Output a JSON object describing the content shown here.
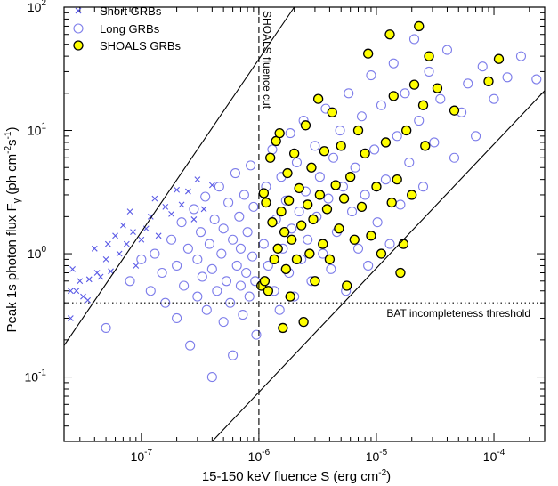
{
  "chart_data": {
    "type": "scatter",
    "x_scale": "log",
    "y_scale": "log",
    "xlim": [
      2.2e-08,
      0.00027
    ],
    "ylim": [
      0.03,
      100
    ],
    "xlabel": "15-150 keV fluence  S (erg cm",
    "xlabel_sup": "-2",
    "xlabel_end": ")",
    "ylabel_pre": "Peak 1s photon flux  F",
    "ylabel_sub": "γ",
    "ylabel_mid": " (ph cm",
    "ylabel_sup1": "-2",
    "ylabel_s": "s",
    "ylabel_sup2": "-1",
    "ylabel_end": ")",
    "x_ticks": [
      {
        "value": 1e-07,
        "base": "10",
        "exp": "-7"
      },
      {
        "value": 1e-06,
        "base": "10",
        "exp": "-6"
      },
      {
        "value": 1e-05,
        "base": "10",
        "exp": "-5"
      },
      {
        "value": 0.0001,
        "base": "10",
        "exp": "-4"
      }
    ],
    "y_ticks": [
      {
        "value": 0.1,
        "base": "10",
        "exp": "-1"
      },
      {
        "value": 1,
        "base": "10",
        "exp": "0"
      },
      {
        "value": 10,
        "base": "10",
        "exp": "1"
      },
      {
        "value": 100,
        "base": "10",
        "exp": "2"
      }
    ],
    "legend": {
      "position": "top-left",
      "entries": [
        {
          "label": "Short GRBs",
          "marker": "x"
        },
        {
          "label": "Long GRBs",
          "marker": "open-circle"
        },
        {
          "label": "SHOALS GRBs",
          "marker": "filled-circle"
        }
      ]
    },
    "annotations": {
      "fluence_cut_label": "SHOALS fluence cut",
      "fluence_cut_x": 1e-06,
      "threshold_label": "BAT incompleteness threshold",
      "threshold_y": 0.4
    },
    "reference_lines": [
      {
        "style": "solid",
        "points": [
          [
            2.2e-08,
            0.18
          ],
          [
            2e-06,
            100
          ]
        ]
      },
      {
        "style": "solid",
        "points": [
          [
            4e-07,
            0.03
          ],
          [
            0.00027,
            21
          ]
        ]
      }
    ],
    "series": [
      {
        "name": "Short GRBs",
        "marker": "x",
        "color": "#5a5ae6",
        "points": [
          [
            2.5e-08,
            0.3
          ],
          [
            2.5e-08,
            0.5
          ],
          [
            2.6e-08,
            0.75
          ],
          [
            2.8e-08,
            0.5
          ],
          [
            3e-08,
            0.6
          ],
          [
            3.2e-08,
            0.45
          ],
          [
            3.5e-08,
            0.42
          ],
          [
            3.6e-08,
            0.62
          ],
          [
            4e-08,
            1.1
          ],
          [
            4.2e-08,
            0.7
          ],
          [
            4.5e-08,
            0.65
          ],
          [
            5e-08,
            0.9
          ],
          [
            5.2e-08,
            1.2
          ],
          [
            5.5e-08,
            0.72
          ],
          [
            6e-08,
            1.4
          ],
          [
            6.5e-08,
            1.0
          ],
          [
            7e-08,
            1.7
          ],
          [
            7.5e-08,
            1.2
          ],
          [
            8e-08,
            2.2
          ],
          [
            8.5e-08,
            1.5
          ],
          [
            9e-08,
            0.8
          ],
          [
            1e-07,
            1.3
          ],
          [
            1.1e-07,
            1.6
          ],
          [
            1.2e-07,
            2.0
          ],
          [
            1.3e-07,
            2.8
          ],
          [
            1.4e-07,
            1.4
          ],
          [
            1.6e-07,
            2.4
          ],
          [
            1.8e-07,
            2.1
          ],
          [
            2e-07,
            3.3
          ],
          [
            2.2e-07,
            2.5
          ],
          [
            2.5e-07,
            3.2
          ],
          [
            2.8e-07,
            1.9
          ],
          [
            3e-07,
            4.0
          ],
          [
            3.4e-07,
            2.3
          ],
          [
            4e-07,
            3.6
          ]
        ]
      },
      {
        "name": "Long GRBs",
        "marker": "open-circle",
        "color": "#7d7dea",
        "points": [
          [
            5e-08,
            0.25
          ],
          [
            8e-08,
            0.6
          ],
          [
            1e-07,
            0.9
          ],
          [
            1.2e-07,
            0.5
          ],
          [
            1.3e-07,
            1.0
          ],
          [
            1.5e-07,
            0.7
          ],
          [
            1.6e-07,
            0.4
          ],
          [
            1.8e-07,
            1.3
          ],
          [
            2e-07,
            0.8
          ],
          [
            2e-07,
            0.3
          ],
          [
            2.2e-07,
            1.8
          ],
          [
            2.3e-07,
            0.55
          ],
          [
            2.5e-07,
            1.1
          ],
          [
            2.6e-07,
            0.18
          ],
          [
            2.8e-07,
            2.3
          ],
          [
            3e-07,
            0.9
          ],
          [
            3e-07,
            0.45
          ],
          [
            3.2e-07,
            1.5
          ],
          [
            3.3e-07,
            0.65
          ],
          [
            3.5e-07,
            2.9
          ],
          [
            3.6e-07,
            0.35
          ],
          [
            3.8e-07,
            1.2
          ],
          [
            4e-07,
            0.75
          ],
          [
            4e-07,
            0.1
          ],
          [
            4.2e-07,
            1.9
          ],
          [
            4.4e-07,
            0.5
          ],
          [
            4.6e-07,
            3.5
          ],
          [
            4.8e-07,
            1.0
          ],
          [
            5e-07,
            0.28
          ],
          [
            5e-07,
            1.6
          ],
          [
            5.3e-07,
            0.6
          ],
          [
            5.5e-07,
            2.6
          ],
          [
            5.7e-07,
            0.4
          ],
          [
            6e-07,
            1.3
          ],
          [
            6e-07,
            0.15
          ],
          [
            6.3e-07,
            4.5
          ],
          [
            6.5e-07,
            0.8
          ],
          [
            6.8e-07,
            2.0
          ],
          [
            7e-07,
            0.55
          ],
          [
            7e-07,
            1.1
          ],
          [
            7.3e-07,
            0.32
          ],
          [
            7.5e-07,
            3.0
          ],
          [
            7.8e-07,
            0.7
          ],
          [
            8e-07,
            1.5
          ],
          [
            8.3e-07,
            0.45
          ],
          [
            8.5e-07,
            5.2
          ],
          [
            8.8e-07,
            0.95
          ],
          [
            9e-07,
            2.4
          ],
          [
            9.3e-07,
            0.6
          ],
          [
            9.5e-07,
            0.22
          ],
          [
            1.1e-06,
            1.2
          ],
          [
            1.15e-06,
            3.5
          ],
          [
            1.2e-06,
            0.8
          ],
          [
            1.3e-06,
            7.0
          ],
          [
            1.35e-06,
            0.5
          ],
          [
            1.4e-06,
            1.9
          ],
          [
            1.5e-06,
            0.35
          ],
          [
            1.55e-06,
            4.2
          ],
          [
            1.6e-06,
            1.1
          ],
          [
            1.7e-06,
            2.7
          ],
          [
            1.8e-06,
            0.7
          ],
          [
            1.85e-06,
            9.5
          ],
          [
            1.9e-06,
            1.6
          ],
          [
            2e-06,
            0.45
          ],
          [
            2.1e-06,
            5.5
          ],
          [
            2.2e-06,
            2.2
          ],
          [
            2.3e-06,
            0.9
          ],
          [
            2.4e-06,
            12.0
          ],
          [
            2.5e-06,
            3.2
          ],
          [
            2.6e-06,
            1.3
          ],
          [
            2.8e-06,
            0.6
          ],
          [
            3e-06,
            7.5
          ],
          [
            3.1e-06,
            2.0
          ],
          [
            3.3e-06,
            4.2
          ],
          [
            3.5e-06,
            1.0
          ],
          [
            3.7e-06,
            15.0
          ],
          [
            3.9e-06,
            2.8
          ],
          [
            4.1e-06,
            0.75
          ],
          [
            4.3e-06,
            6.0
          ],
          [
            4.6e-06,
            1.5
          ],
          [
            4.9e-06,
            10.0
          ],
          [
            5.2e-06,
            3.5
          ],
          [
            5.5e-06,
            0.5
          ],
          [
            5.8e-06,
            20.0
          ],
          [
            6.2e-06,
            2.2
          ],
          [
            6.6e-06,
            5.0
          ],
          [
            7e-06,
            1.1
          ],
          [
            7.5e-06,
            13.0
          ],
          [
            8e-06,
            3.0
          ],
          [
            8.5e-06,
            0.8
          ],
          [
            9e-06,
            28.0
          ],
          [
            9.6e-06,
            7.0
          ],
          [
            1.02e-05,
            1.8
          ],
          [
            1.1e-05,
            16.0
          ],
          [
            1.2e-05,
            4.0
          ],
          [
            1.3e-05,
            1.2
          ],
          [
            1.4e-05,
            35.0
          ],
          [
            1.5e-05,
            9.0
          ],
          [
            1.6e-05,
            2.5
          ],
          [
            1.75e-05,
            20.0
          ],
          [
            1.9e-05,
            5.5
          ],
          [
            2.1e-05,
            55.0
          ],
          [
            2.3e-05,
            12.0
          ],
          [
            2.5e-05,
            3.5
          ],
          [
            2.8e-05,
            30.0
          ],
          [
            3.1e-05,
            8.0
          ],
          [
            3.5e-05,
            18.0
          ],
          [
            4e-05,
            45.0
          ],
          [
            4.6e-05,
            6.0
          ],
          [
            5.3e-05,
            14.0
          ],
          [
            6e-05,
            24.0
          ],
          [
            7e-05,
            9.0
          ],
          [
            8e-05,
            33.0
          ],
          [
            0.0001,
            18.0
          ],
          [
            0.00013,
            27.0
          ],
          [
            0.00017,
            40.0
          ],
          [
            0.00023,
            26.0
          ]
        ]
      },
      {
        "name": "SHOALS GRBs",
        "marker": "filled-circle",
        "color": "#ffff00",
        "points": [
          [
            1.05e-06,
            0.55
          ],
          [
            1.1e-06,
            3.1
          ],
          [
            1.12e-06,
            0.6
          ],
          [
            1.15e-06,
            2.6
          ],
          [
            1.2e-06,
            0.5
          ],
          [
            1.25e-06,
            6.0
          ],
          [
            1.3e-06,
            1.8
          ],
          [
            1.35e-06,
            0.9
          ],
          [
            1.4e-06,
            8.2
          ],
          [
            1.45e-06,
            1.1
          ],
          [
            1.5e-06,
            9.5
          ],
          [
            1.55e-06,
            2.2
          ],
          [
            1.6e-06,
            0.25
          ],
          [
            1.65e-06,
            1.5
          ],
          [
            1.7e-06,
            0.75
          ],
          [
            1.75e-06,
            4.5
          ],
          [
            1.8e-06,
            2.7
          ],
          [
            1.85e-06,
            0.45
          ],
          [
            1.9e-06,
            1.3
          ],
          [
            2e-06,
            6.5
          ],
          [
            2.1e-06,
            0.9
          ],
          [
            2.2e-06,
            3.4
          ],
          [
            2.3e-06,
            1.7
          ],
          [
            2.4e-06,
            0.28
          ],
          [
            2.5e-06,
            11.0
          ],
          [
            2.6e-06,
            2.5
          ],
          [
            2.7e-06,
            1.0
          ],
          [
            2.8e-06,
            5.0
          ],
          [
            2.9e-06,
            1.9
          ],
          [
            3e-06,
            0.6
          ],
          [
            3.2e-06,
            18.0
          ],
          [
            3.3e-06,
            3.0
          ],
          [
            3.5e-06,
            1.2
          ],
          [
            3.6e-06,
            6.8
          ],
          [
            3.8e-06,
            2.3
          ],
          [
            4e-06,
            0.9
          ],
          [
            4.2e-06,
            14.0
          ],
          [
            4.5e-06,
            3.6
          ],
          [
            4.8e-06,
            1.6
          ],
          [
            5e-06,
            7.5
          ],
          [
            5.3e-06,
            2.8
          ],
          [
            5.6e-06,
            0.55
          ],
          [
            6e-06,
            4.2
          ],
          [
            6.5e-06,
            1.3
          ],
          [
            7e-06,
            10.0
          ],
          [
            7.5e-06,
            2.4
          ],
          [
            8e-06,
            6.5
          ],
          [
            8.5e-06,
            42.0
          ],
          [
            9e-06,
            1.4
          ],
          [
            1e-05,
            3.5
          ],
          [
            1.1e-05,
            1.0
          ],
          [
            1.2e-05,
            8.0
          ],
          [
            1.35e-05,
            2.6
          ],
          [
            1.4e-05,
            19.0
          ],
          [
            1.5e-05,
            4.0
          ],
          [
            1.7e-05,
            1.2
          ],
          [
            1.8e-05,
            10.0
          ],
          [
            2e-05,
            3.0
          ],
          [
            2.1e-05,
            23.5
          ],
          [
            2.3e-05,
            70.0
          ],
          [
            2.5e-05,
            16.0
          ],
          [
            2.6e-05,
            7.5
          ],
          [
            2.8e-05,
            40.0
          ],
          [
            3.3e-05,
            22.0
          ],
          [
            4.6e-05,
            14.5
          ],
          [
            9e-05,
            25.0
          ],
          [
            0.00011,
            38.0
          ],
          [
            1.3e-05,
            60.0
          ],
          [
            1.6e-05,
            0.7
          ]
        ]
      }
    ]
  }
}
